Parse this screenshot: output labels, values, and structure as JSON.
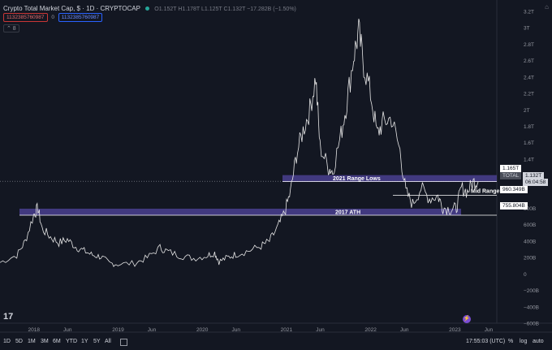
{
  "header": {
    "title": "Crypto Total Market Cap, $ · 1D · CRYPTOCAP",
    "ohlc": "O1.152T H1.178T L1.125T C1.132T −17.282B (−1.50%)",
    "input_red": "1132385760987",
    "input_sep": "0",
    "input_blue": "1132385760987",
    "collapse_glyph": "⌃ 8",
    "top_icon": "⌂"
  },
  "price_axis": {
    "labels": [
      "3.2T",
      "3T",
      "2.8T",
      "2.6T",
      "2.4T",
      "2.2T",
      "2T",
      "1.8T",
      "1.6T",
      "1.4T",
      "800B",
      "600B",
      "400B",
      "200B",
      "0",
      "−200B",
      "−400B",
      "−600B"
    ]
  },
  "price_tags": {
    "high_box": "1.165T",
    "total_label": "TOTAL",
    "total_value": "1.132T",
    "countdown": "06:04:58",
    "mid": "960.349B",
    "low": "755.804B"
  },
  "annotations": {
    "range_lows": "2021 Range Lows",
    "mid_range": "Mid Range",
    "ath_2017": "2017 ATH"
  },
  "time_axis": {
    "labels": [
      "2018",
      "Jun",
      "2019",
      "Jun",
      "2020",
      "Jun",
      "2021",
      "Jun",
      "2022",
      "Jun",
      "2023",
      "Jun"
    ]
  },
  "bottom_bar": {
    "timeframes": [
      "1D",
      "5D",
      "1M",
      "3M",
      "6M",
      "YTD",
      "1Y",
      "5Y",
      "All"
    ],
    "compare_icon": "calendar-icon",
    "clock": "17:55:03 (UTC)",
    "pct": "%",
    "log": "log",
    "auto": "auto"
  },
  "logo_text": "17",
  "bolt_glyph": "⚡",
  "colors": {
    "background": "#131722",
    "price_line": "#e6e6e6",
    "zone": "#4a3f8f",
    "up": "#26a69a",
    "down": "#ef5350"
  },
  "chart_data": {
    "type": "line",
    "series": [
      {
        "values": [
          [
            2017.6,
            0.14
          ],
          [
            2017.8,
            0.23
          ],
          [
            2017.9,
            0.4
          ],
          [
            2018.0,
            0.72
          ],
          [
            2018.05,
            0.8
          ],
          [
            2018.1,
            0.55
          ],
          [
            2018.2,
            0.45
          ],
          [
            2018.3,
            0.38
          ],
          [
            2018.4,
            0.42
          ],
          [
            2018.5,
            0.33
          ],
          [
            2018.6,
            0.28
          ],
          [
            2018.7,
            0.23
          ],
          [
            2018.8,
            0.21
          ],
          [
            2018.9,
            0.13
          ],
          [
            2019.0,
            0.12
          ],
          [
            2019.2,
            0.13
          ],
          [
            2019.35,
            0.2
          ],
          [
            2019.5,
            0.32
          ],
          [
            2019.6,
            0.27
          ],
          [
            2019.75,
            0.22
          ],
          [
            2019.9,
            0.19
          ],
          [
            2020.05,
            0.22
          ],
          [
            2020.15,
            0.26
          ],
          [
            2020.2,
            0.15
          ],
          [
            2020.3,
            0.2
          ],
          [
            2020.4,
            0.24
          ],
          [
            2020.55,
            0.28
          ],
          [
            2020.7,
            0.34
          ],
          [
            2020.8,
            0.4
          ],
          [
            2020.9,
            0.57
          ],
          [
            2020.98,
            0.75
          ],
          [
            2021.05,
            1.0
          ],
          [
            2021.12,
            1.45
          ],
          [
            2021.2,
            1.75
          ],
          [
            2021.28,
            2.0
          ],
          [
            2021.35,
            2.4
          ],
          [
            2021.4,
            1.55
          ],
          [
            2021.5,
            1.3
          ],
          [
            2021.55,
            1.25
          ],
          [
            2021.65,
            1.7
          ],
          [
            2021.72,
            2.1
          ],
          [
            2021.8,
            2.65
          ],
          [
            2021.86,
            2.95
          ],
          [
            2021.92,
            2.55
          ],
          [
            2022.0,
            2.2
          ],
          [
            2022.08,
            1.7
          ],
          [
            2022.15,
            1.85
          ],
          [
            2022.25,
            1.9
          ],
          [
            2022.35,
            1.5
          ],
          [
            2022.42,
            1.0
          ],
          [
            2022.5,
            0.85
          ],
          [
            2022.6,
            1.05
          ],
          [
            2022.7,
            0.92
          ],
          [
            2022.8,
            0.95
          ],
          [
            2022.86,
            0.81
          ],
          [
            2022.95,
            0.79
          ],
          [
            2023.02,
            0.8
          ],
          [
            2023.08,
            1.05
          ],
          [
            2023.15,
            1.0
          ],
          [
            2023.22,
            1.12
          ],
          [
            2023.28,
            1.13
          ]
        ]
      }
    ],
    "levels": [
      {
        "label": "2021 Range Lows",
        "value": 1.165
      },
      {
        "label": "Mid Range",
        "value": 0.96
      },
      {
        "label": "2017 ATH",
        "value": 0.756
      }
    ],
    "ylim": [
      -0.6,
      3.2
    ],
    "xlim": [
      2017.6,
      2023.5
    ]
  }
}
